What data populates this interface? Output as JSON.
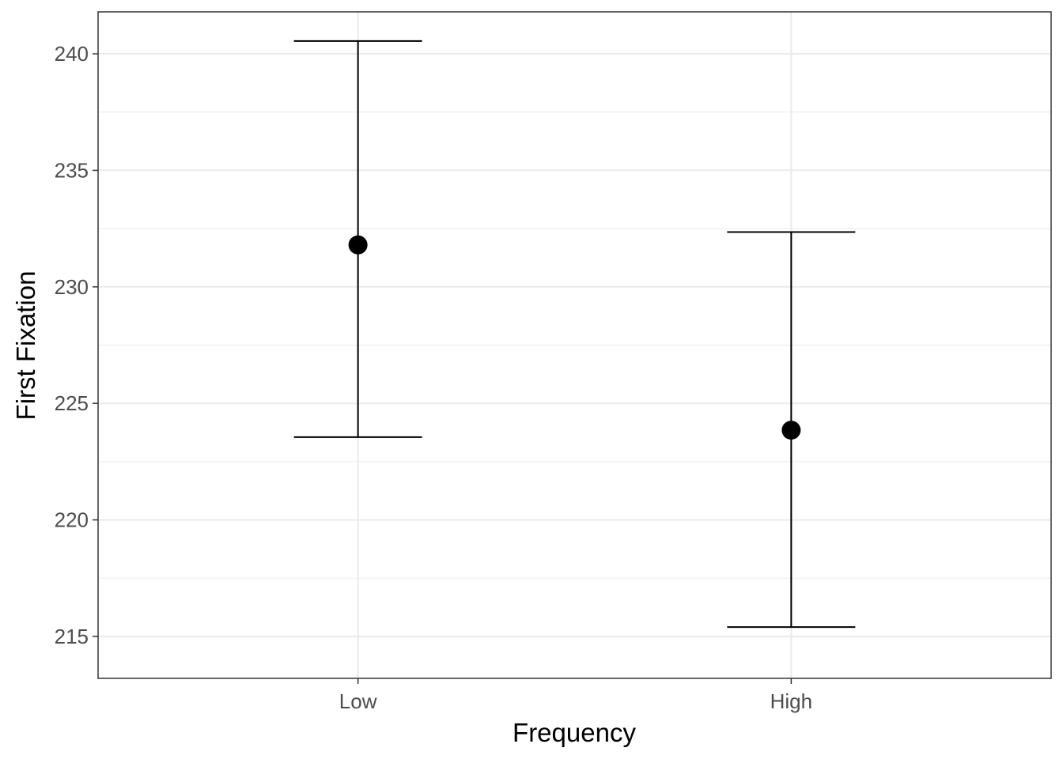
{
  "chart_data": {
    "type": "scatter",
    "title": "",
    "xlabel": "Frequency",
    "ylabel": "First Fixation",
    "categories": [
      "Low",
      "High"
    ],
    "series": [
      {
        "values": [
          231.8,
          223.85
        ],
        "error_lower": [
          223.55,
          215.4
        ],
        "error_upper": [
          240.55,
          232.35
        ]
      }
    ],
    "ylim": [
      213.2,
      241.8
    ],
    "yticks": [
      215,
      220,
      225,
      230,
      235,
      240
    ],
    "grid": true,
    "legend": "none",
    "colors": {
      "point": "#000000",
      "errorbar": "#000000",
      "grid": "#ebebeb",
      "border": "#333333",
      "tick_text": "#4d4d4d"
    }
  }
}
